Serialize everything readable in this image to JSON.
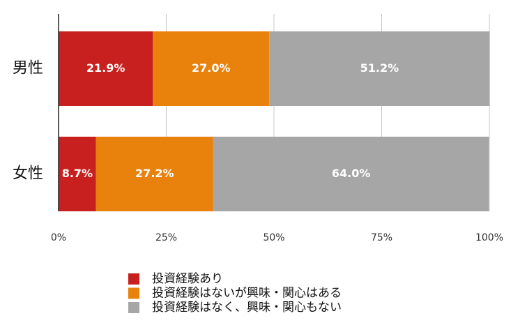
{
  "chart_data": {
    "type": "stacked_barh",
    "categories": [
      "男性",
      "女性"
    ],
    "series": [
      {
        "name": "投資経験あり",
        "color": "#c8201e",
        "values": [
          21.9,
          8.7
        ],
        "value_labels": [
          "21.9%",
          "8.7%"
        ]
      },
      {
        "name": "投資経験はないが興味・関心はある",
        "color": "#e8820c",
        "values": [
          27.0,
          27.2
        ],
        "value_labels": [
          "27.0%",
          "27.2%"
        ]
      },
      {
        "name": "投資経験はなく、興味・関心もない",
        "color": "#a6a6a6",
        "values": [
          51.2,
          64.0
        ],
        "value_labels": [
          "51.2%",
          "64.0%"
        ]
      }
    ],
    "xlim": [
      0,
      100
    ],
    "xticks": [
      {
        "value": 0,
        "label": "0%"
      },
      {
        "value": 25,
        "label": "25%"
      },
      {
        "value": 50,
        "label": "50%"
      },
      {
        "value": 75,
        "label": "75%"
      },
      {
        "value": 100,
        "label": "100%"
      }
    ],
    "grid": true
  }
}
